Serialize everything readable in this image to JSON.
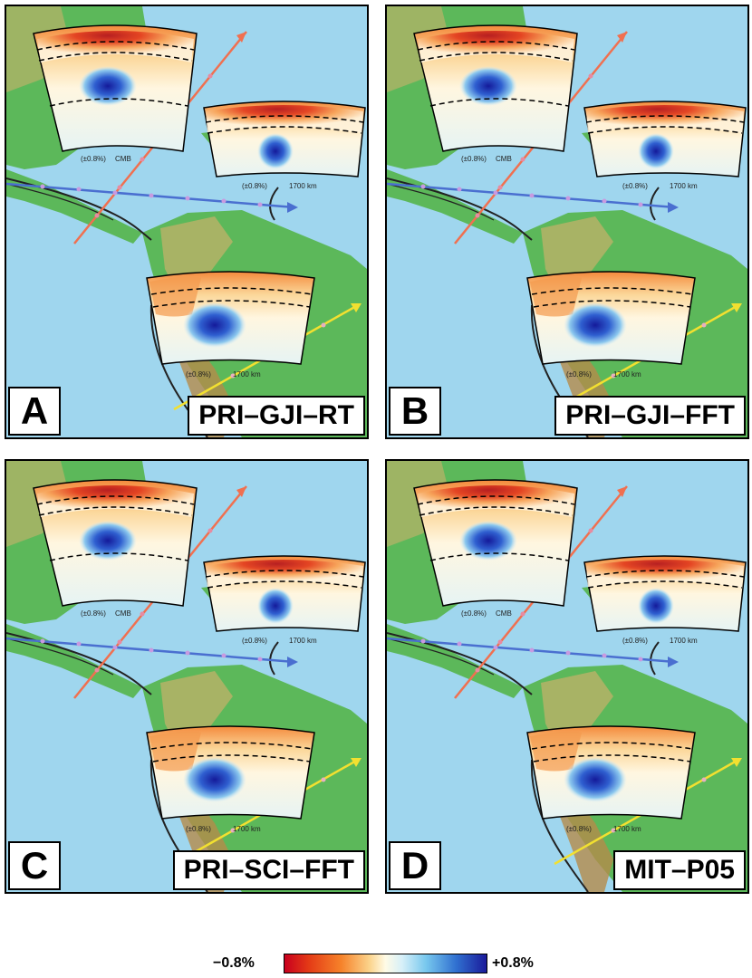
{
  "panels": [
    {
      "letter": "A",
      "model": "PRI–GJI–RT"
    },
    {
      "letter": "B",
      "model": "PRI–GJI–FFT"
    },
    {
      "letter": "C",
      "model": "PRI–SCI–FFT"
    },
    {
      "letter": "D",
      "model": "MIT–P05"
    }
  ],
  "section_labels": {
    "north_scale": "(±0.8%)",
    "north_depth": "CMB",
    "east_scale": "(±0.8%)",
    "east_depth": "1700 km",
    "south_scale": "(±0.8%)",
    "south_depth": "1700 km"
  },
  "colorbar": {
    "min_label": "−0.8%",
    "max_label": "+0.8%"
  },
  "colors": {
    "ocean": "#9fd6ee",
    "land": "#5cb85a",
    "highland": "#c9b06a",
    "orange_profile": "#f07050",
    "blue_profile": "#4a6fd0",
    "yellow_profile": "#f2e030",
    "fast_anomaly": "#1a2aa0",
    "slow_anomaly": "#d01a1a"
  }
}
